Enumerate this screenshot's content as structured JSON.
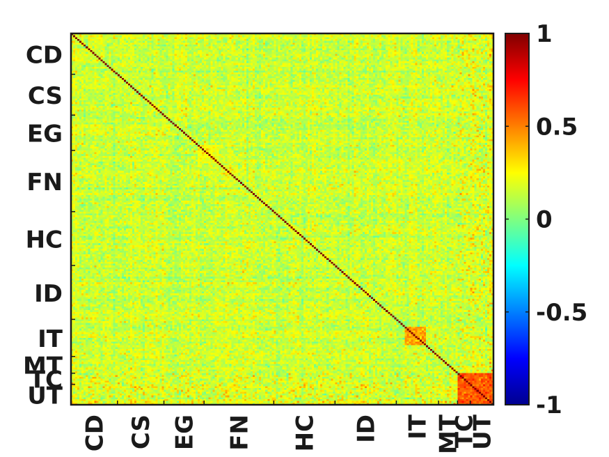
{
  "chart_data": {
    "type": "heatmap",
    "title": "",
    "xlabel": "",
    "ylabel": "",
    "n": 200,
    "colormap": "jet",
    "clim": [
      -1,
      1
    ],
    "diagonal_value": 1,
    "colorbar_ticks": [
      {
        "value": 1,
        "label": "1"
      },
      {
        "value": 0.5,
        "label": "0.5"
      },
      {
        "value": 0,
        "label": "0"
      },
      {
        "value": -0.5,
        "label": "-0.5"
      },
      {
        "value": -1,
        "label": "-1"
      }
    ],
    "groups": [
      {
        "label": "CD",
        "start": 0,
        "end": 22
      },
      {
        "label": "CS",
        "start": 22,
        "end": 44
      },
      {
        "label": "EG",
        "start": 44,
        "end": 63
      },
      {
        "label": "FN",
        "start": 63,
        "end": 96
      },
      {
        "label": "HC",
        "start": 96,
        "end": 125
      },
      {
        "label": "ID",
        "start": 125,
        "end": 154
      },
      {
        "label": "IT",
        "start": 154,
        "end": 174
      },
      {
        "label": "MT",
        "start": 174,
        "end": 183
      },
      {
        "label": "TC",
        "start": 183,
        "end": 189
      },
      {
        "label": "UT",
        "start": 189,
        "end": 200
      }
    ],
    "blocks": [
      {
        "from": 183,
        "to": 200,
        "level": 0.58
      },
      {
        "from": 158,
        "to": 168,
        "level": 0.42
      },
      {
        "from": 60,
        "to": 70,
        "level": 0.25
      }
    ]
  }
}
